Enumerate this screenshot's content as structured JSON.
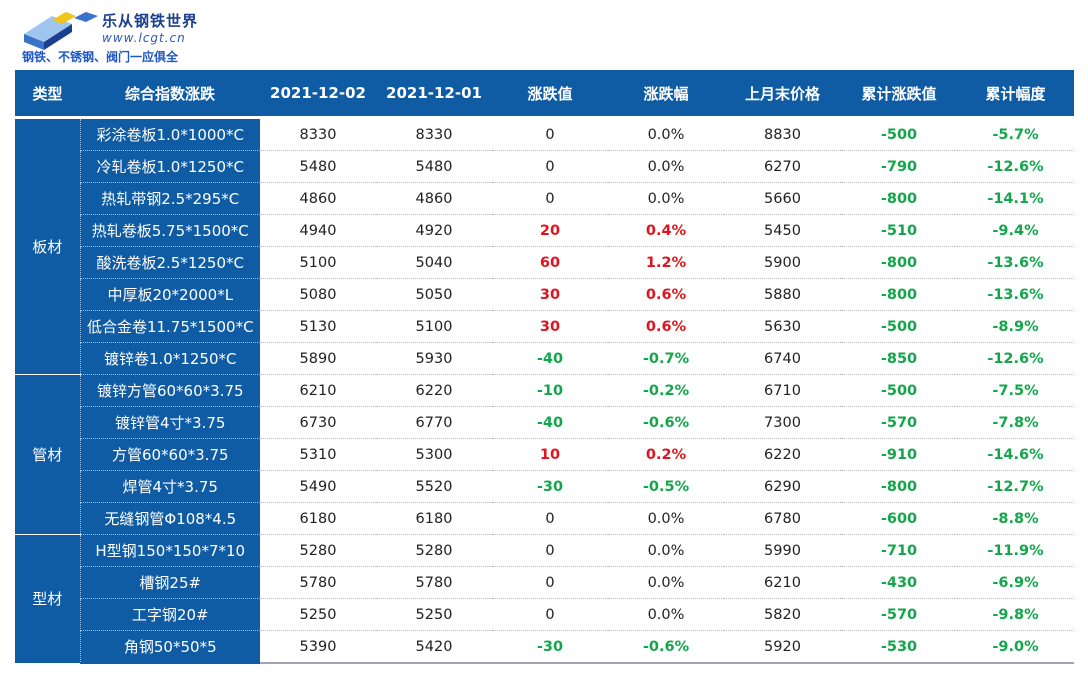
{
  "logo": {
    "name": "乐从钢铁世界",
    "url": "www.lcgt.cn",
    "slogan": "钢铁、不锈钢、阀门一应俱全",
    "colors": {
      "primary": "#1b3f8f",
      "accent": "#f0c419",
      "light": "#9ec6ef"
    }
  },
  "colors": {
    "header_bg": "#0f5ba4",
    "up": "#e0141e",
    "down": "#13a64a"
  },
  "table": {
    "headers": [
      "类型",
      "综合指数涨跌",
      "2021-12-02",
      "2021-12-01",
      "涨跌值",
      "涨跌幅",
      "上月末价格",
      "累计涨跌值",
      "累计幅度"
    ],
    "groups": [
      {
        "category": "板材",
        "rows": [
          {
            "name": "彩涂卷板1.0*1000*C",
            "d1": "8330",
            "d2": "8330",
            "chg": "0",
            "pct": "0.0%",
            "last": "8830",
            "cum": "-500",
            "cum_pct": "-5.7%",
            "trend": "flat"
          },
          {
            "name": "冷轧卷板1.0*1250*C",
            "d1": "5480",
            "d2": "5480",
            "chg": "0",
            "pct": "0.0%",
            "last": "6270",
            "cum": "-790",
            "cum_pct": "-12.6%",
            "trend": "flat"
          },
          {
            "name": "热轧带钢2.5*295*C",
            "d1": "4860",
            "d2": "4860",
            "chg": "0",
            "pct": "0.0%",
            "last": "5660",
            "cum": "-800",
            "cum_pct": "-14.1%",
            "trend": "flat"
          },
          {
            "name": "热轧卷板5.75*1500*C",
            "d1": "4940",
            "d2": "4920",
            "chg": "20",
            "pct": "0.4%",
            "last": "5450",
            "cum": "-510",
            "cum_pct": "-9.4%",
            "trend": "up"
          },
          {
            "name": "酸洗卷板2.5*1250*C",
            "d1": "5100",
            "d2": "5040",
            "chg": "60",
            "pct": "1.2%",
            "last": "5900",
            "cum": "-800",
            "cum_pct": "-13.6%",
            "trend": "up"
          },
          {
            "name": "中厚板20*2000*L",
            "d1": "5080",
            "d2": "5050",
            "chg": "30",
            "pct": "0.6%",
            "last": "5880",
            "cum": "-800",
            "cum_pct": "-13.6%",
            "trend": "up"
          },
          {
            "name": "低合金卷11.75*1500*C",
            "d1": "5130",
            "d2": "5100",
            "chg": "30",
            "pct": "0.6%",
            "last": "5630",
            "cum": "-500",
            "cum_pct": "-8.9%",
            "trend": "up"
          },
          {
            "name": "镀锌卷1.0*1250*C",
            "d1": "5890",
            "d2": "5930",
            "chg": "-40",
            "pct": "-0.7%",
            "last": "6740",
            "cum": "-850",
            "cum_pct": "-12.6%",
            "trend": "down"
          }
        ]
      },
      {
        "category": "管材",
        "rows": [
          {
            "name": "镀锌方管60*60*3.75",
            "d1": "6210",
            "d2": "6220",
            "chg": "-10",
            "pct": "-0.2%",
            "last": "6710",
            "cum": "-500",
            "cum_pct": "-7.5%",
            "trend": "down"
          },
          {
            "name": "镀锌管4寸*3.75",
            "d1": "6730",
            "d2": "6770",
            "chg": "-40",
            "pct": "-0.6%",
            "last": "7300",
            "cum": "-570",
            "cum_pct": "-7.8%",
            "trend": "down"
          },
          {
            "name": "方管60*60*3.75",
            "d1": "5310",
            "d2": "5300",
            "chg": "10",
            "pct": "0.2%",
            "last": "6220",
            "cum": "-910",
            "cum_pct": "-14.6%",
            "trend": "up"
          },
          {
            "name": "焊管4寸*3.75",
            "d1": "5490",
            "d2": "5520",
            "chg": "-30",
            "pct": "-0.5%",
            "last": "6290",
            "cum": "-800",
            "cum_pct": "-12.7%",
            "trend": "down"
          },
          {
            "name": "无缝钢管Φ108*4.5",
            "d1": "6180",
            "d2": "6180",
            "chg": "0",
            "pct": "0.0%",
            "last": "6780",
            "cum": "-600",
            "cum_pct": "-8.8%",
            "trend": "flat"
          }
        ]
      },
      {
        "category": "型材",
        "rows": [
          {
            "name": "H型钢150*150*7*10",
            "d1": "5280",
            "d2": "5280",
            "chg": "0",
            "pct": "0.0%",
            "last": "5990",
            "cum": "-710",
            "cum_pct": "-11.9%",
            "trend": "flat"
          },
          {
            "name": "槽钢25#",
            "d1": "5780",
            "d2": "5780",
            "chg": "0",
            "pct": "0.0%",
            "last": "6210",
            "cum": "-430",
            "cum_pct": "-6.9%",
            "trend": "flat"
          },
          {
            "name": "工字钢20#",
            "d1": "5250",
            "d2": "5250",
            "chg": "0",
            "pct": "0.0%",
            "last": "5820",
            "cum": "-570",
            "cum_pct": "-9.8%",
            "trend": "flat"
          },
          {
            "name": "角钢50*50*5",
            "d1": "5390",
            "d2": "5420",
            "chg": "-30",
            "pct": "-0.6%",
            "last": "5920",
            "cum": "-530",
            "cum_pct": "-9.0%",
            "trend": "down"
          }
        ]
      }
    ]
  }
}
